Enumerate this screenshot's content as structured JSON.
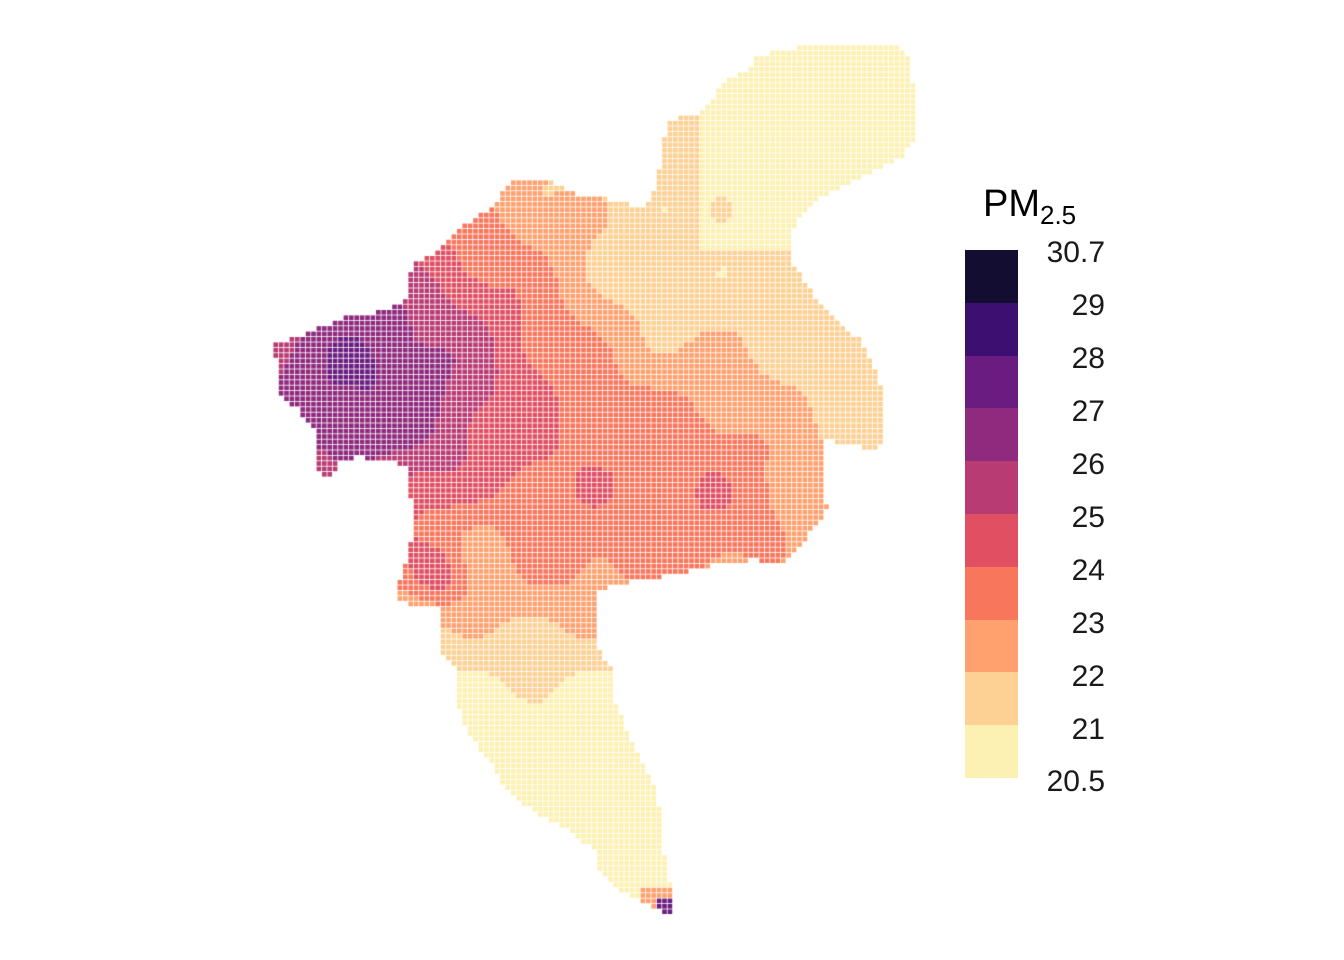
{
  "legend": {
    "title": "PM",
    "title_subscript": "2.5",
    "max_label": "30.7",
    "min_label": "20.5",
    "ticks": [
      "29",
      "28",
      "27",
      "26",
      "25",
      "24",
      "23",
      "22",
      "21"
    ],
    "bins": [
      {
        "from": 20.5,
        "to": 21,
        "color": "#FCF0B2"
      },
      {
        "from": 21,
        "to": 22,
        "color": "#FDD093"
      },
      {
        "from": 22,
        "to": 23,
        "color": "#FEA16E"
      },
      {
        "from": 23,
        "to": 24,
        "color": "#F8765C"
      },
      {
        "from": 24,
        "to": 25,
        "color": "#E04F62"
      },
      {
        "from": 25,
        "to": 26,
        "color": "#B93B74"
      },
      {
        "from": 26,
        "to": 27,
        "color": "#8F2A7E"
      },
      {
        "from": 27,
        "to": 28,
        "color": "#6A1C80"
      },
      {
        "from": 28,
        "to": 29,
        "color": "#3D0F71"
      },
      {
        "from": 29,
        "to": 30.7,
        "color": "#120D31"
      }
    ]
  },
  "map": {
    "variable": "PM2.5",
    "value_range": [
      20.5,
      30.7
    ],
    "cell_outline_color": "#ffffff"
  }
}
